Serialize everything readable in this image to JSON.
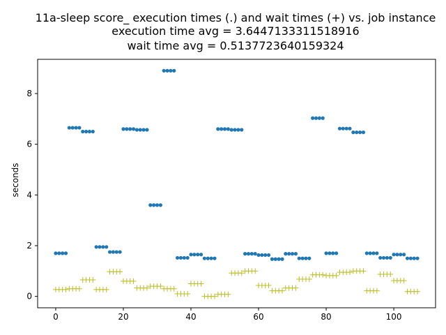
{
  "chart_data": {
    "type": "scatter",
    "title_lines": [
      "11a-sleep score_ execution times (.) and wait times (+) vs. job instance",
      "execution time avg = 3.6447133311518916",
      "wait time avg = 0.5137723640159324"
    ],
    "xlabel": "",
    "ylabel": "seconds",
    "xlim": [
      -5.35,
      112.35
    ],
    "ylim": [
      -0.45,
      9.35
    ],
    "xticks": [
      0,
      20,
      40,
      60,
      80,
      100
    ],
    "yticks": [
      0,
      2,
      4,
      6,
      8
    ],
    "grid": false,
    "series": [
      {
        "marker": "dot",
        "color": "#1f77b4",
        "x": [
          0,
          1,
          2,
          3,
          4,
          5,
          6,
          7,
          8,
          9,
          10,
          11,
          12,
          13,
          14,
          15,
          16,
          17,
          18,
          19,
          20,
          21,
          22,
          23,
          24,
          25,
          26,
          27,
          28,
          29,
          30,
          31,
          32,
          33,
          34,
          35,
          36,
          37,
          38,
          39,
          40,
          41,
          42,
          43,
          44,
          45,
          46,
          47,
          48,
          49,
          50,
          51,
          52,
          53,
          54,
          55,
          56,
          57,
          58,
          59,
          60,
          61,
          62,
          63,
          64,
          65,
          66,
          67,
          68,
          69,
          70,
          71,
          72,
          73,
          74,
          75,
          76,
          77,
          78,
          79,
          80,
          81,
          82,
          83,
          84,
          85,
          86,
          87,
          88,
          89,
          90,
          91,
          92,
          93,
          94,
          95,
          96,
          97,
          98,
          99,
          100,
          101,
          102,
          103,
          104,
          105,
          106,
          107
        ],
        "y": [
          1.7,
          1.7,
          1.7,
          1.7,
          6.65,
          6.65,
          6.65,
          6.65,
          6.5,
          6.5,
          6.5,
          6.5,
          1.95,
          1.95,
          1.95,
          1.95,
          1.75,
          1.75,
          1.75,
          1.75,
          6.6,
          6.6,
          6.6,
          6.6,
          6.57,
          6.57,
          6.57,
          6.57,
          3.6,
          3.6,
          3.6,
          3.6,
          8.9,
          8.9,
          8.9,
          8.9,
          1.52,
          1.52,
          1.52,
          1.52,
          1.65,
          1.65,
          1.65,
          1.65,
          1.5,
          1.5,
          1.5,
          1.5,
          6.6,
          6.6,
          6.6,
          6.6,
          6.57,
          6.57,
          6.57,
          6.57,
          1.68,
          1.68,
          1.68,
          1.68,
          1.63,
          1.63,
          1.63,
          1.63,
          1.47,
          1.47,
          1.47,
          1.47,
          1.68,
          1.68,
          1.68,
          1.68,
          1.5,
          1.5,
          1.5,
          1.5,
          7.03,
          7.03,
          7.03,
          7.03,
          1.7,
          1.7,
          1.7,
          1.7,
          6.62,
          6.62,
          6.62,
          6.62,
          6.47,
          6.47,
          6.47,
          6.47,
          1.7,
          1.7,
          1.7,
          1.7,
          1.52,
          1.52,
          1.52,
          1.52,
          1.65,
          1.65,
          1.65,
          1.65,
          1.5,
          1.5,
          1.5,
          1.5
        ]
      },
      {
        "marker": "plus",
        "color": "#bcbd22",
        "x": [
          0,
          1,
          2,
          3,
          4,
          5,
          6,
          7,
          8,
          9,
          10,
          11,
          12,
          13,
          14,
          15,
          16,
          17,
          18,
          19,
          20,
          21,
          22,
          23,
          24,
          25,
          26,
          27,
          28,
          29,
          30,
          31,
          32,
          33,
          34,
          35,
          36,
          37,
          38,
          39,
          40,
          41,
          42,
          43,
          44,
          45,
          46,
          47,
          48,
          49,
          50,
          51,
          52,
          53,
          54,
          55,
          56,
          57,
          58,
          59,
          60,
          61,
          62,
          63,
          64,
          65,
          66,
          67,
          68,
          69,
          70,
          71,
          72,
          73,
          74,
          75,
          76,
          77,
          78,
          79,
          80,
          81,
          82,
          83,
          84,
          85,
          86,
          87,
          88,
          89,
          90,
          91,
          92,
          93,
          94,
          95,
          96,
          97,
          98,
          99,
          100,
          101,
          102,
          103,
          104,
          105,
          106,
          107
        ],
        "y": [
          0.27,
          0.27,
          0.27,
          0.27,
          0.3,
          0.3,
          0.3,
          0.3,
          0.65,
          0.65,
          0.65,
          0.65,
          0.27,
          0.27,
          0.27,
          0.27,
          0.97,
          0.97,
          0.97,
          0.97,
          0.6,
          0.6,
          0.6,
          0.6,
          0.33,
          0.33,
          0.33,
          0.33,
          0.4,
          0.4,
          0.4,
          0.4,
          0.3,
          0.3,
          0.3,
          0.3,
          0.1,
          0.1,
          0.1,
          0.1,
          0.5,
          0.5,
          0.5,
          0.5,
          0.0,
          0.0,
          0.0,
          0.0,
          0.08,
          0.08,
          0.08,
          0.08,
          0.92,
          0.92,
          0.92,
          0.92,
          1.0,
          1.0,
          1.0,
          1.0,
          0.43,
          0.43,
          0.43,
          0.43,
          0.22,
          0.22,
          0.22,
          0.22,
          0.33,
          0.33,
          0.33,
          0.33,
          0.68,
          0.68,
          0.68,
          0.68,
          0.85,
          0.85,
          0.85,
          0.85,
          0.82,
          0.82,
          0.82,
          0.82,
          0.95,
          0.95,
          0.95,
          0.95,
          1.0,
          1.0,
          1.0,
          1.0,
          0.22,
          0.22,
          0.22,
          0.22,
          0.87,
          0.87,
          0.87,
          0.87,
          0.62,
          0.62,
          0.62,
          0.62,
          0.19,
          0.19,
          0.19,
          0.19
        ]
      }
    ]
  }
}
